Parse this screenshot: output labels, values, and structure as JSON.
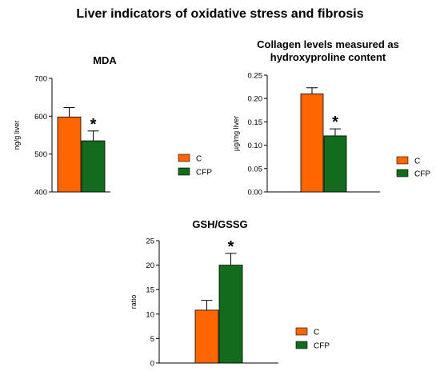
{
  "figure": {
    "title": "Liver indicators of oxidative stress and fibrosis"
  },
  "colors": {
    "C": "#ff6600",
    "CFP": "#136b1e",
    "axis": "#000000"
  },
  "chart_data": [
    {
      "type": "bar",
      "title": "MDA",
      "title_lines": [
        "MDA"
      ],
      "ylabel": "ng/g liver",
      "ylim": [
        400,
        700
      ],
      "yticks": [
        400,
        500,
        600,
        700
      ],
      "tick_labels": [
        "400",
        "500",
        "600",
        "700"
      ],
      "categories": [
        "C",
        "CFP"
      ],
      "series": [
        {
          "name": "C",
          "value": 598,
          "error": 25
        },
        {
          "name": "CFP",
          "value": 535,
          "error": 26
        }
      ],
      "annotations": [
        {
          "text": "*",
          "series": "CFP"
        }
      ],
      "legend": [
        "C",
        "CFP"
      ],
      "grid": false
    },
    {
      "type": "bar",
      "title": "Collagen levels measured as hydroxyproline content",
      "title_lines": [
        "Collagen levels measured as",
        "hydroxyproline content"
      ],
      "ylabel": "µg/mg liver",
      "ylim": [
        0,
        0.25
      ],
      "yticks": [
        0,
        0.05,
        0.1,
        0.15,
        0.2,
        0.25
      ],
      "tick_labels": [
        "0.00",
        "0.05",
        "0.10",
        "0.15",
        "0.20",
        "0.25"
      ],
      "categories": [
        "C",
        "CFP"
      ],
      "series": [
        {
          "name": "C",
          "value": 0.21,
          "error": 0.013
        },
        {
          "name": "CFP",
          "value": 0.12,
          "error": 0.015
        }
      ],
      "annotations": [
        {
          "text": "*",
          "series": "CFP"
        }
      ],
      "legend": [
        "C",
        "CFP"
      ],
      "grid": false
    },
    {
      "type": "bar",
      "title": "GSH/GSSG",
      "title_lines": [
        "GSH/GSSG"
      ],
      "ylabel": "ratio",
      "ylim": [
        0,
        25
      ],
      "yticks": [
        0,
        5,
        10,
        15,
        20,
        25
      ],
      "tick_labels": [
        "0",
        "5",
        "10",
        "15",
        "20",
        "25"
      ],
      "categories": [
        "C",
        "CFP"
      ],
      "series": [
        {
          "name": "C",
          "value": 10.8,
          "error": 2.0
        },
        {
          "name": "CFP",
          "value": 20.0,
          "error": 2.4
        }
      ],
      "annotations": [
        {
          "text": "*",
          "series": "CFP"
        }
      ],
      "legend": [
        "C",
        "CFP"
      ],
      "grid": false
    }
  ]
}
